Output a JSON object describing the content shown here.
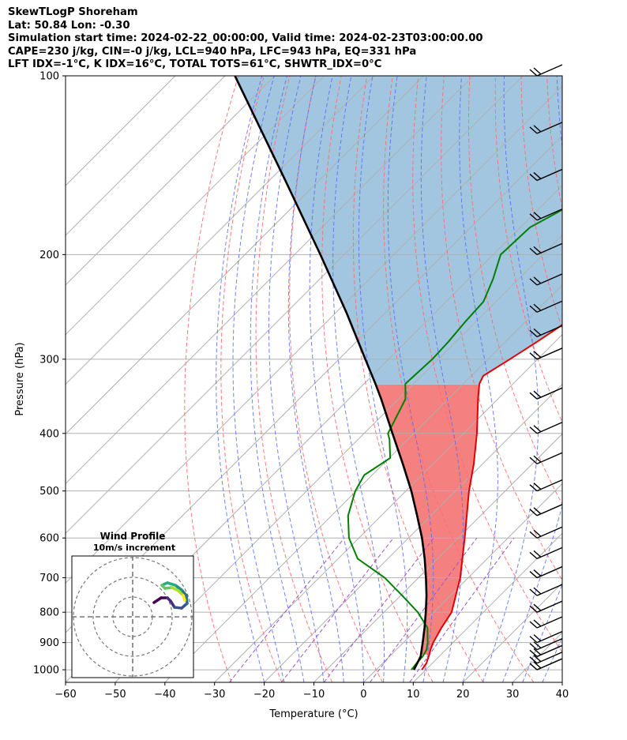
{
  "header": {
    "line1": "SkewTLogP Shoreham",
    "line2": "Lat: 50.84   Lon: -0.30",
    "line3": "Simulation start time: 2024-02-22_00:00:00, Valid time: 2024-02-23T03:00:00.00",
    "line4": "CAPE=230 j/kg, CIN=-0 j/kg, LCL=940 hPa, LFC=943 hPa, EQ=331 hPa",
    "line5": "LFT IDX=-1$^\\circ$C, K IDX=16$^\\circ$C, TOTAL TOTS=61$^\\circ$C, SHWTR_IDX=0$^\\circ$C"
  },
  "chart_data": [
    {
      "type": "line",
      "chart_name": "skewt-logp",
      "xlabel": "Temperature ($^\\circ$C)",
      "ylabel": "Pressure (hPa)",
      "xlim": [
        -60,
        40
      ],
      "ylim": [
        1050,
        100
      ],
      "y_scale": "log",
      "skew": "isotherms skewed 45 degrees",
      "x_ticks": [
        "−60",
        "−50",
        "−40",
        "−30",
        "−20",
        "−10",
        "0",
        "10",
        "20",
        "30",
        "40"
      ],
      "y_ticks": [
        "100",
        "200",
        "300",
        "400",
        "500",
        "600",
        "700",
        "800",
        "900",
        "1000"
      ],
      "grid": true,
      "series": [
        {
          "role": "temperature",
          "color": "#e00000",
          "p": [
            1000,
            975,
            950,
            925,
            900,
            850,
            800,
            700,
            600,
            500,
            450,
            400,
            350,
            330,
            320,
            300,
            280,
            260,
            240,
            220,
            200,
            180,
            160,
            150,
            140,
            130,
            120,
            110,
            100
          ],
          "t": [
            9.2,
            8.8,
            7.9,
            6.9,
            6.0,
            4.7,
            3.6,
            -1.6,
            -8.7,
            -17.3,
            -21.8,
            -27.3,
            -34.0,
            -36.8,
            -37.6,
            -35.6,
            -33.6,
            -31.7,
            -29.5,
            -27.4,
            -26.2,
            -25.3,
            -24.4,
            -23.0,
            -22.0,
            -21.4,
            -21.5,
            -21.6,
            -21.9
          ]
        },
        {
          "role": "dewpoint",
          "color": "#008000",
          "p": [
            1000,
            975,
            950,
            925,
            900,
            850,
            800,
            750,
            700,
            650,
            600,
            550,
            500,
            470,
            440,
            410,
            400,
            350,
            330,
            300,
            280,
            260,
            240,
            220,
            200,
            180,
            170,
            160,
            150,
            140,
            130,
            120,
            110,
            100
          ],
          "t": [
            7.1,
            6.8,
            6.7,
            6.1,
            4.9,
            1.9,
            -3.2,
            -9.7,
            -16.8,
            -26.1,
            -32.0,
            -36.7,
            -40.2,
            -41.6,
            -39.8,
            -43.6,
            -45.2,
            -48.6,
            -51.7,
            -51.2,
            -51.5,
            -52.1,
            -52.5,
            -55.1,
            -58.5,
            -58.1,
            -55.6,
            -53.4,
            -51.2,
            -48.7,
            -46.6,
            -44.7,
            -43.0,
            -41.1
          ]
        },
        {
          "role": "parcel",
          "color": "#000000",
          "p": [
            1000,
            950,
            900,
            850,
            800,
            750,
            700,
            650,
            600,
            550,
            500,
            450,
            400,
            350,
            331,
            300,
            250,
            200,
            150,
            100
          ],
          "t": [
            7.6,
            6.3,
            3.9,
            1.3,
            -1.6,
            -4.8,
            -8.5,
            -12.6,
            -17.3,
            -22.8,
            -28.9,
            -36.1,
            -44.3,
            -53.5,
            -57.5,
            -64.7,
            -78.0,
            -94.8,
            -116.8,
            -148.0
          ]
        }
      ],
      "shading": [
        {
          "role": "CAPE",
          "color": "#f58080",
          "between": "parcel and temperature",
          "p_range": [
            943,
            331
          ]
        },
        {
          "role": "upper",
          "color": "#a2c6e0",
          "between": "temperature and parcel",
          "p_range": [
            331,
            100
          ]
        }
      ],
      "reference_lines": {
        "dry_adiabats": {
          "color": "#ff6b6b",
          "style": "dashed"
        },
        "moist_adiabats": {
          "color": "#5a6cf5",
          "style": "dashed"
        },
        "mixing_ratio": {
          "color": "#9d55c9",
          "style": "dashed"
        }
      },
      "wind_barbs": {
        "p": [
          100,
          125,
          150,
          175,
          200,
          225,
          250,
          275,
          300,
          350,
          400,
          450,
          500,
          550,
          600,
          650,
          700,
          750,
          800,
          850,
          900,
          925,
          950,
          975,
          1000
        ],
        "color": "#000000"
      }
    },
    {
      "type": "scatter",
      "chart_name": "hodograph",
      "title": "Wind Profile",
      "subtitle": "10m/s increment",
      "rings": [
        10,
        20,
        30
      ],
      "colormap": "viridis"
    }
  ]
}
